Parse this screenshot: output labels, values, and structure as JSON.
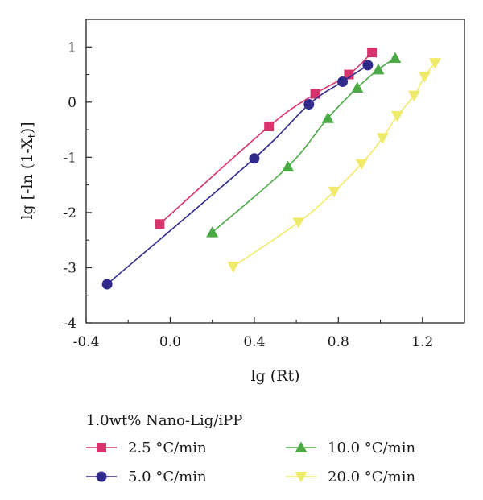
{
  "chart_data": {
    "type": "line",
    "xlabel": "lg (Rt)",
    "ylabel_main": "lg [-ln (1-X",
    "ylabel_sub": "t",
    "ylabel_end": ")]",
    "xlim": [
      -0.4,
      1.4
    ],
    "ylim": [
      -4,
      1.5
    ],
    "x_ticks": [
      "-0.4",
      "0.0",
      "0.4",
      "0.8",
      "1.2"
    ],
    "x_tick_values": [
      -0.4,
      0.0,
      0.4,
      0.8,
      1.2
    ],
    "y_ticks": [
      "1",
      "0",
      "-1",
      "-2",
      "-3",
      "-4"
    ],
    "y_tick_values": [
      1,
      0,
      -1,
      -2,
      -3,
      -4
    ],
    "legend_title": "1.0wt% Nano-Lig/iPP",
    "legend_position": "bottom",
    "series": [
      {
        "name": "2.5 °C/min",
        "color": "#d8336c",
        "marker": "square",
        "x": [
          -0.05,
          0.47,
          0.69,
          0.85,
          0.96
        ],
        "y": [
          -2.21,
          -0.44,
          0.15,
          0.5,
          0.9
        ]
      },
      {
        "name": "5.0 °C/min",
        "color": "#2f2a8c",
        "marker": "circle",
        "x": [
          -0.3,
          0.4,
          0.66,
          0.82,
          0.94
        ],
        "y": [
          -3.3,
          -1.02,
          -0.04,
          0.37,
          0.67
        ]
      },
      {
        "name": "10.0 °C/min",
        "color": "#4caa46",
        "marker": "triangle-up",
        "x": [
          0.2,
          0.56,
          0.75,
          0.89,
          0.99,
          1.07
        ],
        "y": [
          -2.36,
          -1.17,
          -0.29,
          0.26,
          0.59,
          0.8
        ]
      },
      {
        "name": "20.0 °C/min",
        "color": "#f0ea6a",
        "marker": "triangle-down",
        "x": [
          0.3,
          0.61,
          0.78,
          0.91,
          1.01,
          1.08,
          1.16,
          1.21,
          1.26
        ],
        "y": [
          -2.98,
          -2.18,
          -1.62,
          -1.12,
          -0.65,
          -0.25,
          0.12,
          0.46,
          0.71
        ]
      }
    ]
  }
}
